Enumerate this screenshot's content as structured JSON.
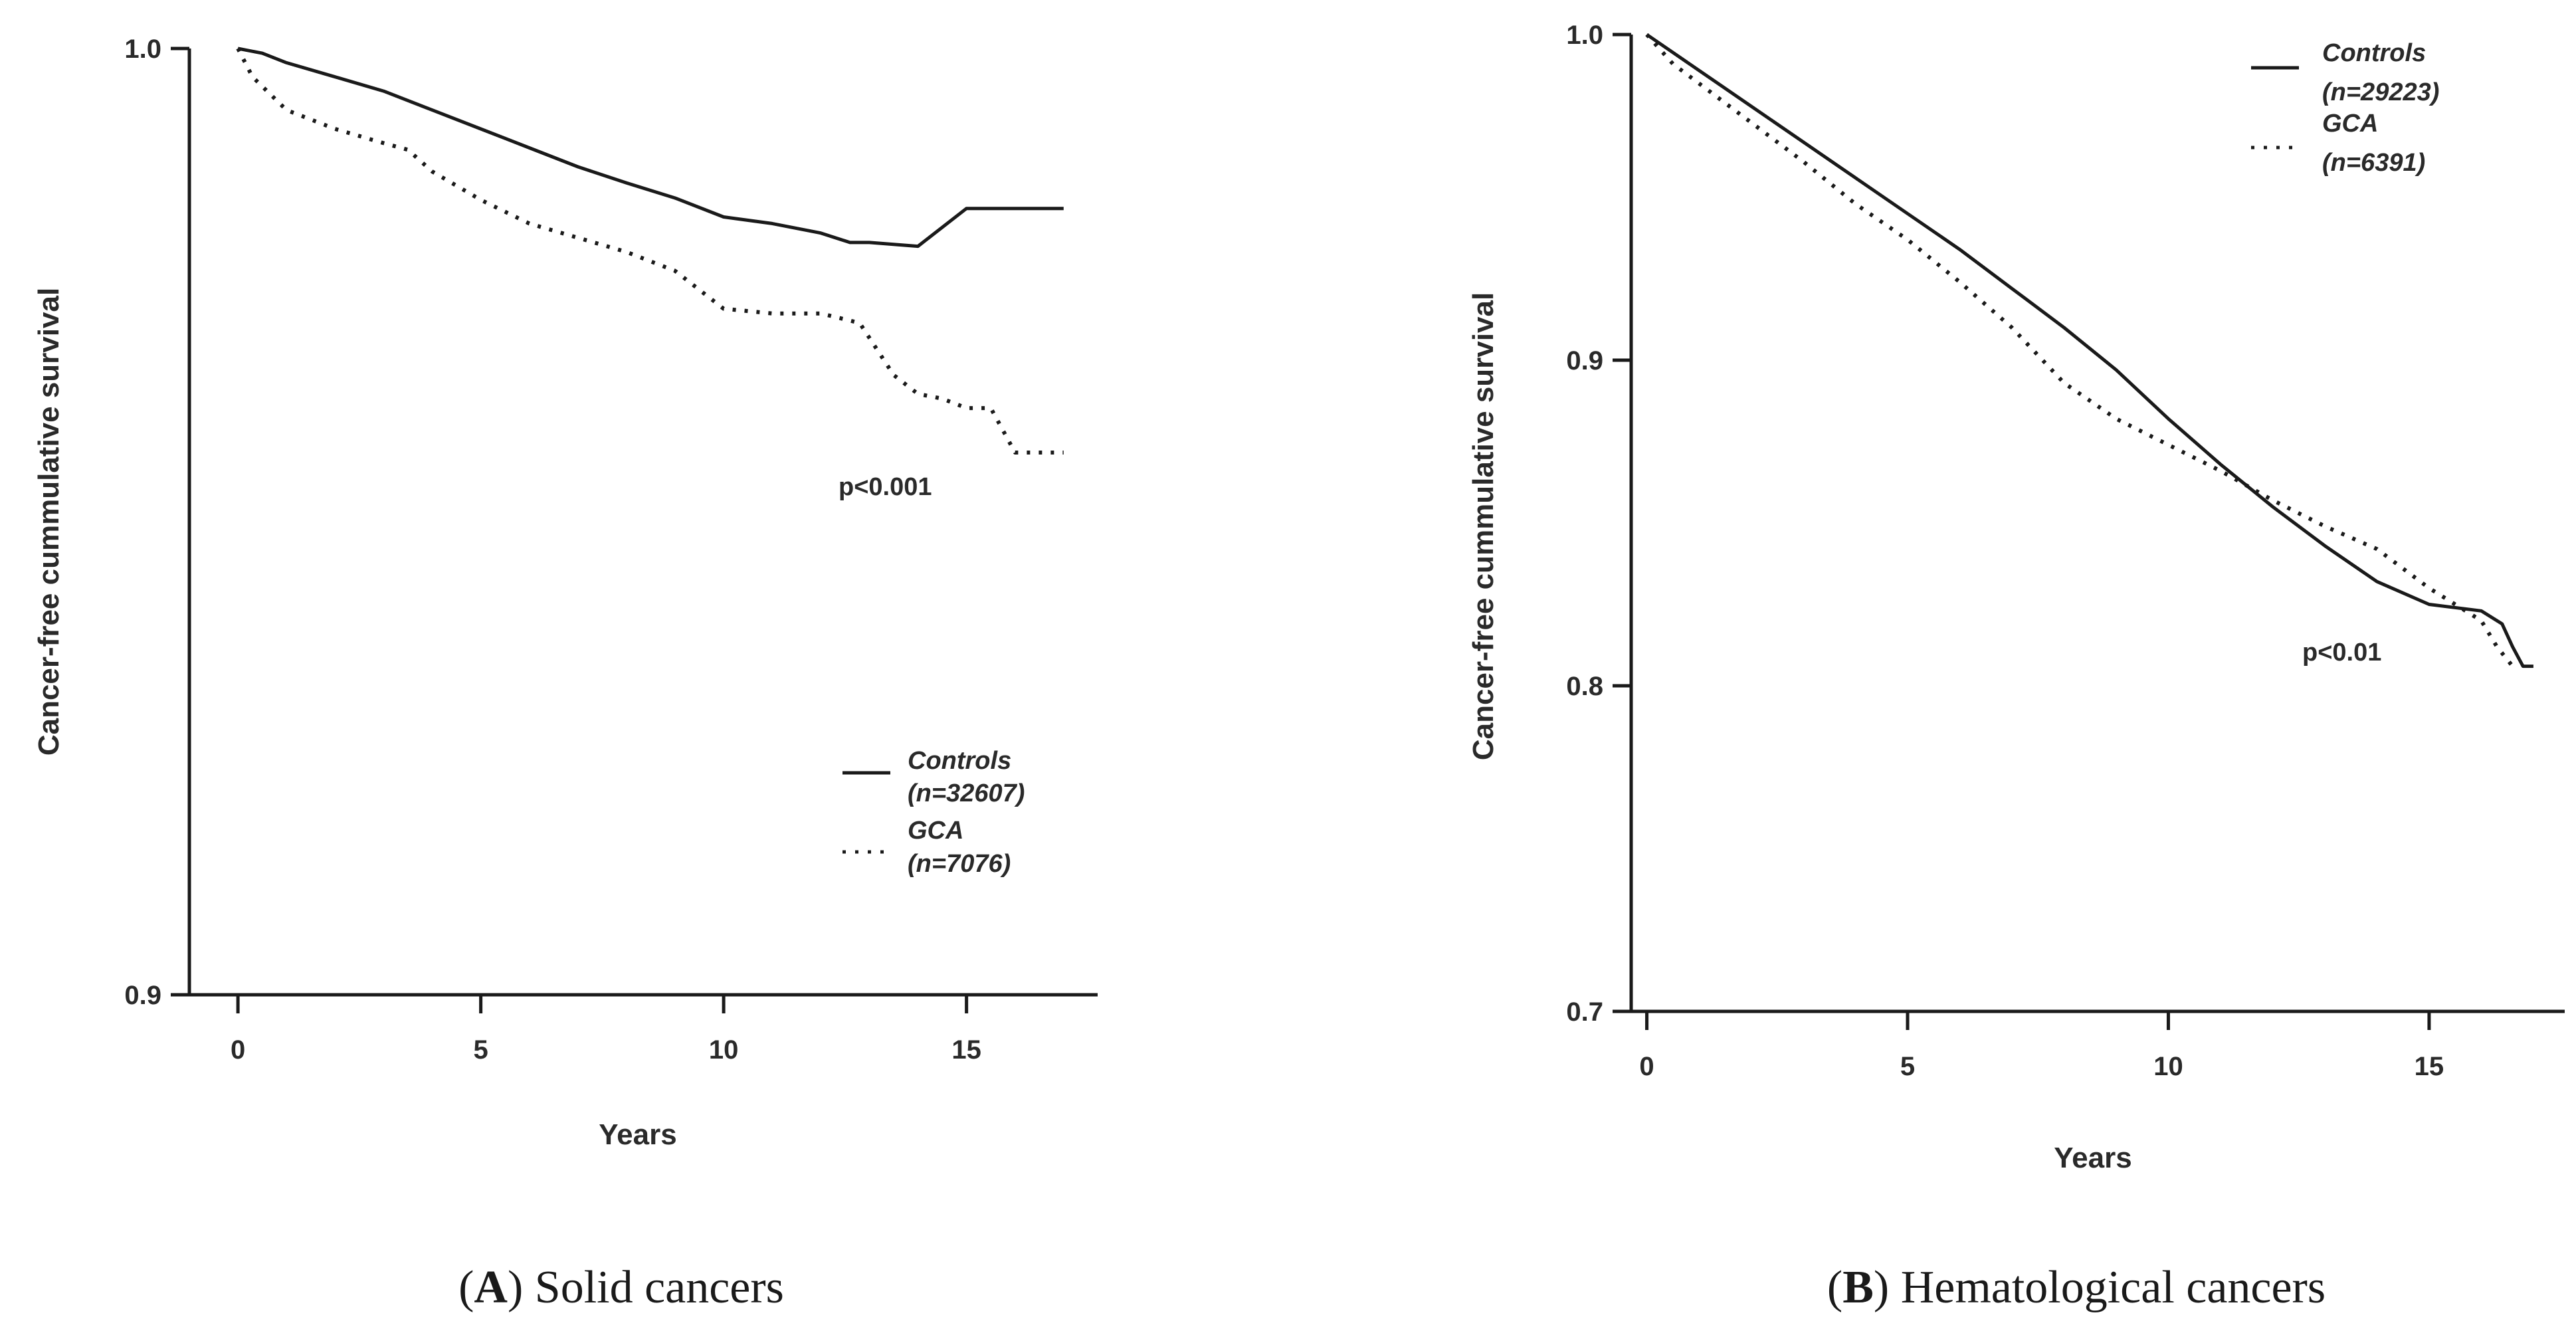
{
  "chart_data": [
    {
      "type": "line",
      "panel": "A",
      "caption_letter": "A",
      "caption_text": "Solid cancers",
      "xlabel": "Years",
      "ylabel": "Cancer-free cummulative survival",
      "xlim": [
        -1,
        17.7
      ],
      "ylim": [
        0.9,
        1.0
      ],
      "xticks": [
        0,
        5,
        10,
        15
      ],
      "xtick_labels": [
        "0",
        "5",
        "10",
        "15"
      ],
      "yticks": [
        0.9,
        1.0
      ],
      "ytick_labels": [
        "0.9",
        "1.0"
      ],
      "annotation": "p<0.001",
      "series": [
        {
          "name": "Controls",
          "n_label": "(n=32607)",
          "style": "solid",
          "x": [
            0,
            0.5,
            1,
            2,
            3,
            4,
            5,
            6,
            7,
            8,
            9,
            10,
            11,
            12,
            12.6,
            13,
            13.5,
            14,
            15,
            16,
            17
          ],
          "y": [
            1.0,
            0.9995,
            0.9985,
            0.997,
            0.9955,
            0.9935,
            0.9915,
            0.9895,
            0.9875,
            0.9858,
            0.9842,
            0.9822,
            0.9815,
            0.9805,
            0.9795,
            0.9795,
            0.9793,
            0.9791,
            0.9831,
            0.9831,
            0.9831
          ]
        },
        {
          "name": "GCA",
          "n_label": "(n=7076)",
          "style": "dotted",
          "x": [
            0,
            0.3,
            1,
            2,
            3,
            3.5,
            4,
            5,
            6,
            7,
            8,
            9,
            10,
            11,
            12,
            12.8,
            13.5,
            14,
            14.5,
            15,
            15.5,
            16,
            17
          ],
          "y": [
            1.0,
            0.997,
            0.9935,
            0.9915,
            0.99,
            0.9893,
            0.987,
            0.984,
            0.9815,
            0.98,
            0.9785,
            0.9765,
            0.9725,
            0.972,
            0.972,
            0.971,
            0.9655,
            0.9635,
            0.963,
            0.962,
            0.962,
            0.9573,
            0.9573
          ]
        }
      ]
    },
    {
      "type": "line",
      "panel": "B",
      "caption_letter": "B",
      "caption_text": "Hematological cancers",
      "xlabel": "Years",
      "ylabel": "Cancer-free cummulative survival",
      "xlim": [
        -0.3,
        17.6
      ],
      "ylim": [
        0.7,
        1.0
      ],
      "xticks": [
        0,
        5,
        10,
        15
      ],
      "xtick_labels": [
        "0",
        "5",
        "10",
        "15"
      ],
      "yticks": [
        0.7,
        0.8,
        0.9,
        1.0
      ],
      "ytick_labels": [
        "0.7",
        "0.8",
        "0.9",
        "1.0"
      ],
      "annotation": "p<0.01",
      "series": [
        {
          "name": "Controls",
          "n_label": "(n=29223)",
          "style": "solid",
          "x": [
            0,
            1,
            2,
            3,
            4,
            5,
            6,
            7,
            8,
            9,
            10,
            11,
            12,
            13,
            14,
            15,
            16,
            16.4,
            16.6,
            16.8,
            17
          ],
          "y": [
            1.0,
            0.989,
            0.978,
            0.967,
            0.956,
            0.945,
            0.934,
            0.922,
            0.91,
            0.897,
            0.882,
            0.868,
            0.855,
            0.843,
            0.832,
            0.825,
            0.823,
            0.819,
            0.812,
            0.806,
            0.806
          ]
        },
        {
          "name": "GCA",
          "n_label": "(n=6391)",
          "style": "dotted",
          "x": [
            0,
            0.5,
            1,
            2,
            3,
            4,
            5,
            6,
            7,
            8,
            9,
            10,
            11,
            12,
            13,
            14,
            15,
            16,
            16.3,
            16.6
          ],
          "y": [
            1.0,
            0.991,
            0.985,
            0.973,
            0.961,
            0.948,
            0.937,
            0.924,
            0.91,
            0.893,
            0.882,
            0.874,
            0.866,
            0.857,
            0.849,
            0.842,
            0.83,
            0.82,
            0.812,
            0.806
          ]
        }
      ]
    }
  ]
}
